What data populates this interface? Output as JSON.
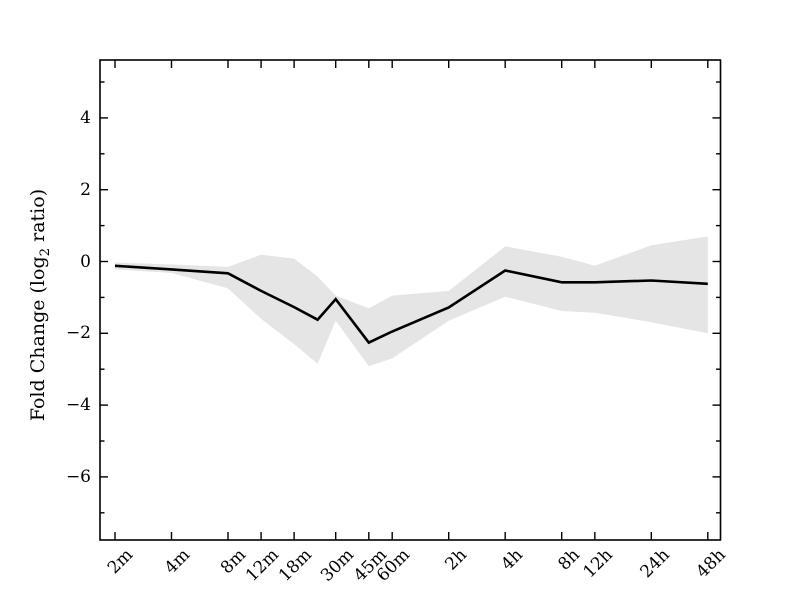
{
  "chart_data": {
    "type": "line",
    "title": "",
    "ylabel": {
      "prefix": "Fold Change (log",
      "subscript": "2",
      "suffix": " ratio)"
    },
    "categories": [
      "2m",
      "4m",
      "8m",
      "12m",
      "18m",
      "30m",
      "45m",
      "60m",
      "2h",
      "4h",
      "8h",
      "12h",
      "24h",
      "48h"
    ],
    "tick_minutes": [
      2,
      4,
      8,
      12,
      18,
      30,
      45,
      60,
      120,
      240,
      480,
      720,
      1440,
      2880
    ],
    "x_points_minutes": [
      2,
      4,
      8,
      12,
      18,
      24,
      30,
      45,
      60,
      120,
      240,
      480,
      720,
      1440,
      2880
    ],
    "series": [
      {
        "name": "fold_change_mean",
        "color": "#000000",
        "values": [
          -0.12,
          -0.22,
          -0.33,
          -0.82,
          -1.27,
          -1.62,
          -1.05,
          -2.26,
          -1.95,
          -1.28,
          -0.25,
          -0.58,
          -0.58,
          -0.53,
          -0.62
        ]
      }
    ],
    "band": {
      "name": "confidence_band",
      "color": "#e5e5e5",
      "upper": [
        -0.03,
        -0.08,
        -0.15,
        0.19,
        0.08,
        -0.42,
        -0.95,
        -1.3,
        -0.95,
        -0.82,
        0.42,
        0.13,
        -0.12,
        0.45,
        0.7
      ],
      "lower": [
        -0.22,
        -0.32,
        -0.75,
        -1.6,
        -2.3,
        -2.85,
        -1.65,
        -2.92,
        -2.7,
        -1.65,
        -0.98,
        -1.38,
        -1.43,
        -1.69,
        -2.0
      ]
    },
    "yticks": {
      "labels": [
        "4",
        "2",
        "0",
        "−2",
        "−4",
        "−6"
      ],
      "values": [
        4,
        2,
        0,
        -2,
        -4,
        -6
      ],
      "minor_values": [
        5,
        3,
        1,
        -1,
        -3,
        -5,
        -7
      ]
    },
    "ylim": [
      -7.8,
      5.6
    ],
    "xscale": "log2",
    "grid": false,
    "legend": "none",
    "axis_color": "#000000"
  }
}
